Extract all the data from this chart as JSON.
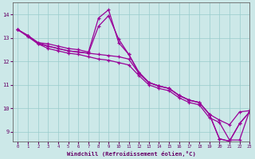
{
  "title": "",
  "xlabel": "Windchill (Refroidissement éolien,°C)",
  "ylabel": "",
  "bg_color": "#cce8e8",
  "line_color": "#990099",
  "grid_color": "#99cccc",
  "xlim": [
    -0.5,
    23
  ],
  "ylim": [
    8.6,
    14.5
  ],
  "yticks": [
    9,
    10,
    11,
    12,
    13,
    14
  ],
  "xticks": [
    0,
    1,
    2,
    3,
    4,
    5,
    6,
    7,
    8,
    9,
    10,
    11,
    12,
    13,
    14,
    15,
    16,
    17,
    18,
    19,
    20,
    21,
    22,
    23
  ],
  "series": [
    {
      "x": [
        0,
        1,
        2,
        3,
        4,
        5,
        6,
        7,
        8,
        9,
        10,
        11,
        12,
        13,
        14,
        15,
        16,
        17,
        18,
        19,
        20,
        21,
        22,
        23
      ],
      "y": [
        13.35,
        13.1,
        12.8,
        12.75,
        12.65,
        12.55,
        12.5,
        12.4,
        13.85,
        14.2,
        12.8,
        12.3,
        11.55,
        11.1,
        10.95,
        10.85,
        10.55,
        10.35,
        10.25,
        9.75,
        8.7,
        8.6,
        9.35,
        9.85
      ]
    },
    {
      "x": [
        0,
        1,
        2,
        3,
        4,
        5,
        6,
        7,
        8,
        9,
        10,
        11,
        12,
        13,
        14,
        15,
        16,
        17,
        18,
        19,
        20,
        21,
        22,
        23
      ],
      "y": [
        13.35,
        13.1,
        12.75,
        12.65,
        12.55,
        12.45,
        12.4,
        12.35,
        13.5,
        13.95,
        12.95,
        12.3,
        11.5,
        11.1,
        10.95,
        10.85,
        10.55,
        10.35,
        10.25,
        9.75,
        8.7,
        8.6,
        9.35,
        9.85
      ]
    },
    {
      "x": [
        0,
        1,
        2,
        3,
        4,
        5,
        6,
        7,
        8,
        9,
        10,
        11,
        12,
        13,
        14,
        15,
        16,
        17,
        18,
        19,
        20,
        21,
        22,
        23
      ],
      "y": [
        13.35,
        13.1,
        12.8,
        12.65,
        12.55,
        12.45,
        12.4,
        12.35,
        12.3,
        12.25,
        12.2,
        12.1,
        11.5,
        11.1,
        10.95,
        10.85,
        10.55,
        10.35,
        10.25,
        9.75,
        9.5,
        9.3,
        9.85,
        9.9
      ]
    },
    {
      "x": [
        0,
        1,
        2,
        3,
        4,
        5,
        6,
        7,
        8,
        9,
        10,
        11,
        12,
        13,
        14,
        15,
        16,
        17,
        18,
        19,
        20,
        21,
        22,
        23
      ],
      "y": [
        13.35,
        13.05,
        12.75,
        12.55,
        12.45,
        12.35,
        12.3,
        12.2,
        12.1,
        12.05,
        11.95,
        11.85,
        11.4,
        11.0,
        10.85,
        10.75,
        10.45,
        10.25,
        10.15,
        9.6,
        9.4,
        8.65,
        8.65,
        9.9
      ]
    }
  ]
}
